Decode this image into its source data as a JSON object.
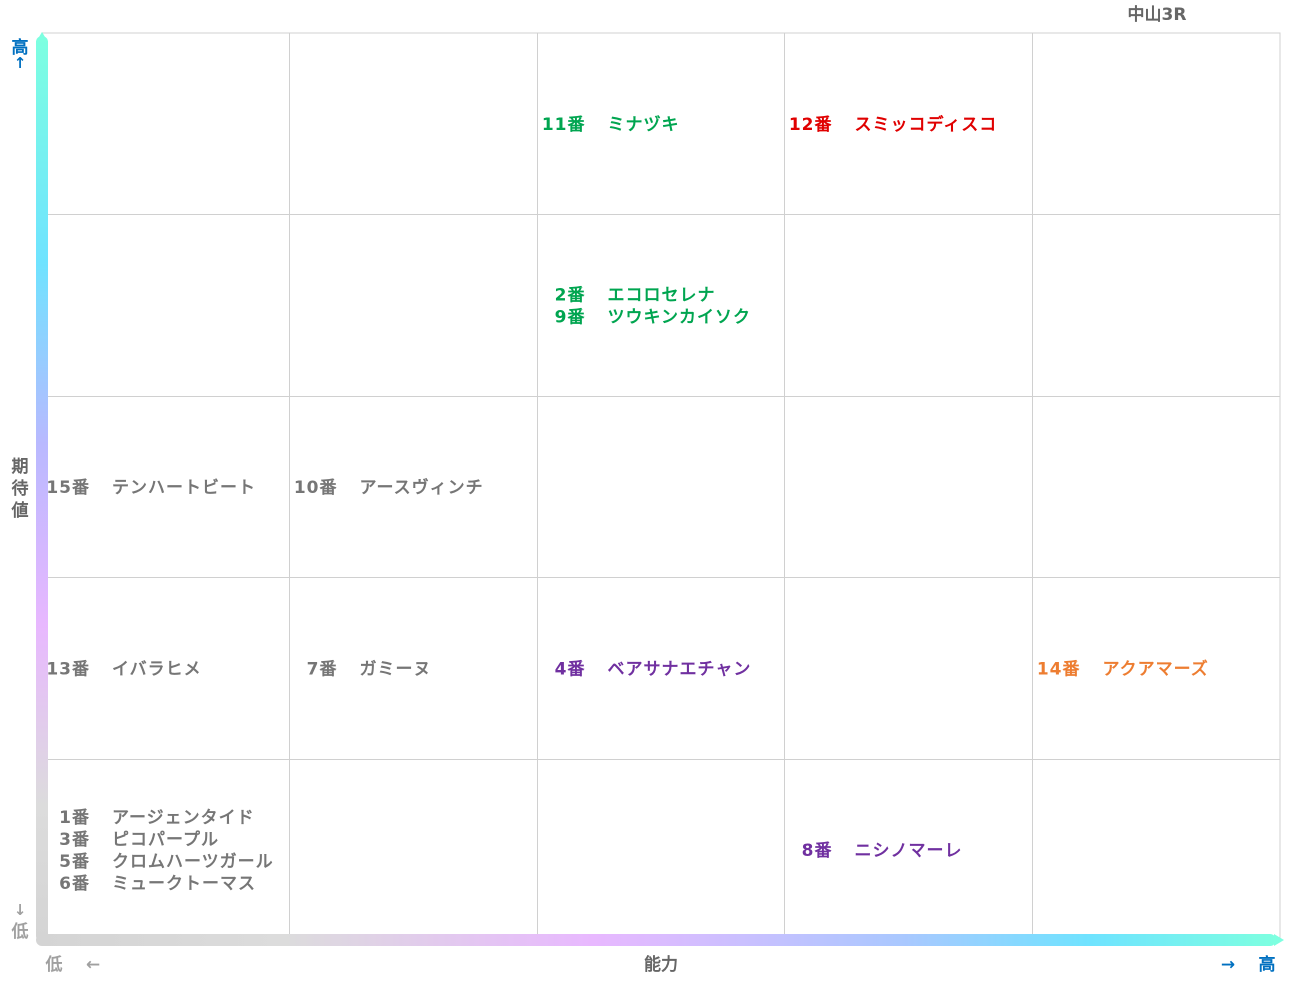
{
  "race": "中山3R",
  "y_axis": {
    "label": "期待値",
    "high": "高",
    "low": "低",
    "high_arrow": "↑",
    "low_arrow": "↓"
  },
  "x_axis": {
    "label": "能力",
    "high": "高",
    "low": "低",
    "high_arrow": "→",
    "low_arrow": "←"
  },
  "colors": {
    "green": "#00a550",
    "red": "#e00000",
    "purple": "#7030a0",
    "orange": "#ed7d31",
    "gray": "#767676",
    "axis_text": "#0070c0",
    "grid": "#d0d0d0"
  },
  "chart_data": {
    "type": "table",
    "title": "中山3R",
    "xlabel": "能力",
    "ylabel": "期待値",
    "columns": 5,
    "rows": 5,
    "cells": [
      {
        "col": 3,
        "row": 1,
        "color": "green",
        "entries": [
          {
            "num": "11番",
            "name": "ミナヅキ"
          }
        ]
      },
      {
        "col": 4,
        "row": 1,
        "color": "red",
        "entries": [
          {
            "num": "12番",
            "name": "スミッコディスコ"
          }
        ]
      },
      {
        "col": 3,
        "row": 2,
        "color": "green",
        "entries": [
          {
            "num": "2番",
            "name": "エコロセレナ"
          },
          {
            "num": "9番",
            "name": "ツウキンカイソク"
          }
        ]
      },
      {
        "col": 1,
        "row": 3,
        "color": "gray",
        "entries": [
          {
            "num": "15番",
            "name": "テンハートビート"
          }
        ]
      },
      {
        "col": 2,
        "row": 3,
        "color": "gray",
        "entries": [
          {
            "num": "10番",
            "name": "アースヴィンチ"
          }
        ]
      },
      {
        "col": 1,
        "row": 4,
        "color": "gray",
        "entries": [
          {
            "num": "13番",
            "name": "イバラヒメ"
          }
        ]
      },
      {
        "col": 2,
        "row": 4,
        "color": "gray",
        "entries": [
          {
            "num": "7番",
            "name": "ガミーヌ"
          }
        ]
      },
      {
        "col": 3,
        "row": 4,
        "color": "purple",
        "entries": [
          {
            "num": "4番",
            "name": "ベアサナエチャン"
          }
        ]
      },
      {
        "col": 5,
        "row": 4,
        "color": "orange",
        "entries": [
          {
            "num": "14番",
            "name": "アクアマーズ"
          }
        ]
      },
      {
        "col": 1,
        "row": 5,
        "color": "gray",
        "entries": [
          {
            "num": "1番",
            "name": "アージェンタイド"
          },
          {
            "num": "3番",
            "name": "ピコパープル"
          },
          {
            "num": "5番",
            "name": "クロムハーツガール"
          },
          {
            "num": "6番",
            "name": "ミュークトーマス"
          }
        ]
      },
      {
        "col": 4,
        "row": 5,
        "color": "purple",
        "entries": [
          {
            "num": "8番",
            "name": "ニシノマーレ"
          }
        ]
      }
    ]
  }
}
